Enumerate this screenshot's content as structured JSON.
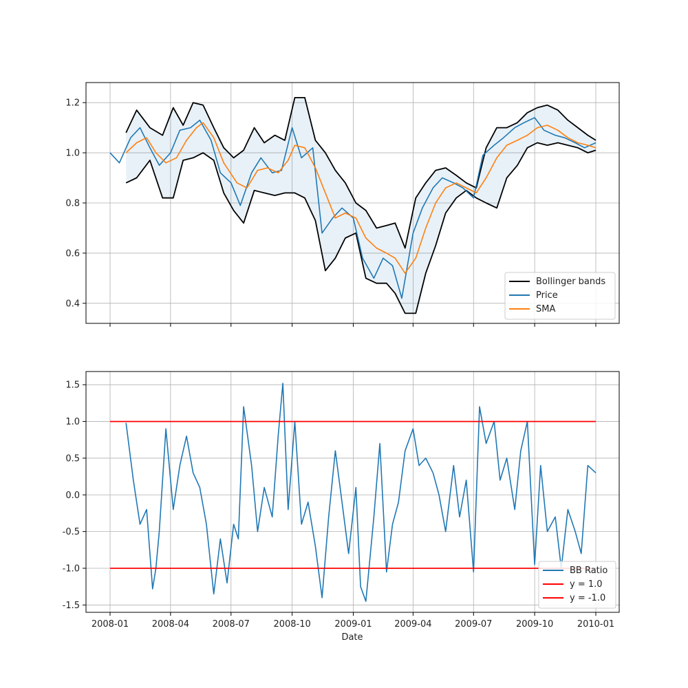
{
  "chart_data": [
    {
      "type": "line",
      "xlim": [
        "2008-01-01",
        "2010-01-01"
      ],
      "ylim": [
        0.32,
        1.28
      ],
      "x_ticks": [
        "2008-01",
        "2008-04",
        "2008-07",
        "2008-10",
        "2009-01",
        "2009-04",
        "2009-07",
        "2009-10",
        "2010-01"
      ],
      "y_ticks": [
        0.4,
        0.6,
        0.8,
        1.0,
        1.2
      ],
      "grid": true,
      "legend_position": "lower-right",
      "colors": {
        "bands": "#000000",
        "price": "#1f77b4",
        "sma": "#ff7f0e",
        "band_fill": "#1f77b4"
      },
      "series": [
        {
          "name": "Price",
          "x": [
            "2008-01-01",
            "2008-01-15",
            "2008-02-01",
            "2008-02-15",
            "2008-03-01",
            "2008-03-15",
            "2008-04-01",
            "2008-04-15",
            "2008-05-01",
            "2008-05-15",
            "2008-06-01",
            "2008-06-15",
            "2008-07-01",
            "2008-07-15",
            "2008-08-01",
            "2008-08-15",
            "2008-09-01",
            "2008-09-15",
            "2008-10-01",
            "2008-10-15",
            "2008-11-01",
            "2008-11-15",
            "2008-12-01",
            "2008-12-15",
            "2009-01-01",
            "2009-01-15",
            "2009-02-01",
            "2009-02-15",
            "2009-03-01",
            "2009-03-15",
            "2009-04-01",
            "2009-04-15",
            "2009-05-01",
            "2009-05-15",
            "2009-06-01",
            "2009-06-15",
            "2009-07-01",
            "2009-07-15",
            "2009-08-01",
            "2009-08-15",
            "2009-09-01",
            "2009-09-15",
            "2009-10-01",
            "2009-10-15",
            "2009-11-01",
            "2009-11-15",
            "2009-12-01",
            "2009-12-15",
            "2010-01-01"
          ],
          "values": [
            1.0,
            0.96,
            1.06,
            1.1,
            1.02,
            0.95,
            1.0,
            1.09,
            1.1,
            1.13,
            1.05,
            0.92,
            0.88,
            0.79,
            0.92,
            0.98,
            0.92,
            0.93,
            1.1,
            0.98,
            1.02,
            0.68,
            0.74,
            0.78,
            0.74,
            0.58,
            0.5,
            0.58,
            0.55,
            0.42,
            0.68,
            0.78,
            0.86,
            0.9,
            0.88,
            0.86,
            0.82,
            0.99,
            1.03,
            1.06,
            1.1,
            1.12,
            1.14,
            1.09,
            1.07,
            1.06,
            1.04,
            1.02,
            1.04
          ]
        },
        {
          "name": "SMA",
          "x": [
            "2008-01-25",
            "2008-02-10",
            "2008-02-25",
            "2008-03-10",
            "2008-03-25",
            "2008-04-10",
            "2008-04-25",
            "2008-05-10",
            "2008-05-20",
            "2008-06-05",
            "2008-06-20",
            "2008-07-10",
            "2008-07-25",
            "2008-08-10",
            "2008-08-25",
            "2008-09-10",
            "2008-09-25",
            "2008-10-05",
            "2008-10-20",
            "2008-11-05",
            "2008-11-20",
            "2008-12-05",
            "2008-12-20",
            "2009-01-05",
            "2009-01-20",
            "2009-02-05",
            "2009-02-20",
            "2009-03-05",
            "2009-03-20",
            "2009-04-05",
            "2009-04-20",
            "2009-05-05",
            "2009-05-20",
            "2009-06-05",
            "2009-06-20",
            "2009-07-05",
            "2009-07-20",
            "2009-08-05",
            "2009-08-20",
            "2009-09-05",
            "2009-09-20",
            "2009-10-05",
            "2009-10-20",
            "2009-11-05",
            "2009-11-20",
            "2009-12-05",
            "2009-12-20",
            "2010-01-01"
          ],
          "values": [
            1.0,
            1.04,
            1.06,
            1.0,
            0.96,
            0.98,
            1.05,
            1.1,
            1.12,
            1.06,
            0.96,
            0.88,
            0.86,
            0.93,
            0.94,
            0.92,
            0.97,
            1.03,
            1.02,
            0.94,
            0.84,
            0.74,
            0.76,
            0.74,
            0.66,
            0.62,
            0.6,
            0.58,
            0.52,
            0.58,
            0.7,
            0.8,
            0.86,
            0.88,
            0.86,
            0.84,
            0.9,
            0.98,
            1.03,
            1.05,
            1.07,
            1.1,
            1.11,
            1.09,
            1.06,
            1.04,
            1.03,
            1.02
          ]
        },
        {
          "name": "Bollinger bands",
          "role": "upper",
          "x": [
            "2008-01-25",
            "2008-02-10",
            "2008-03-01",
            "2008-03-20",
            "2008-04-05",
            "2008-04-20",
            "2008-05-05",
            "2008-05-20",
            "2008-06-05",
            "2008-06-20",
            "2008-07-05",
            "2008-07-20",
            "2008-08-05",
            "2008-08-20",
            "2008-09-05",
            "2008-09-20",
            "2008-10-05",
            "2008-10-20",
            "2008-11-05",
            "2008-11-20",
            "2008-12-05",
            "2008-12-20",
            "2009-01-05",
            "2009-01-20",
            "2009-02-05",
            "2009-02-20",
            "2009-03-05",
            "2009-03-20",
            "2009-04-05",
            "2009-04-20",
            "2009-05-05",
            "2009-05-20",
            "2009-06-05",
            "2009-06-20",
            "2009-07-05",
            "2009-07-20",
            "2009-08-05",
            "2009-08-20",
            "2009-09-05",
            "2009-09-20",
            "2009-10-05",
            "2009-10-20",
            "2009-11-05",
            "2009-11-20",
            "2009-12-05",
            "2009-12-20",
            "2010-01-01"
          ],
          "values": [
            1.08,
            1.17,
            1.1,
            1.07,
            1.18,
            1.11,
            1.2,
            1.19,
            1.1,
            1.02,
            0.98,
            1.01,
            1.1,
            1.04,
            1.07,
            1.05,
            1.22,
            1.22,
            1.05,
            1.0,
            0.93,
            0.88,
            0.8,
            0.77,
            0.7,
            0.71,
            0.72,
            0.62,
            0.82,
            0.88,
            0.93,
            0.94,
            0.91,
            0.88,
            0.86,
            1.02,
            1.1,
            1.1,
            1.12,
            1.16,
            1.18,
            1.19,
            1.17,
            1.13,
            1.1,
            1.07,
            1.05
          ]
        },
        {
          "name": "Bollinger bands",
          "role": "lower",
          "x": [
            "2008-01-25",
            "2008-02-10",
            "2008-03-01",
            "2008-03-20",
            "2008-04-05",
            "2008-04-20",
            "2008-05-05",
            "2008-05-20",
            "2008-06-05",
            "2008-06-20",
            "2008-07-05",
            "2008-07-20",
            "2008-08-05",
            "2008-08-20",
            "2008-09-05",
            "2008-09-20",
            "2008-10-05",
            "2008-10-20",
            "2008-11-05",
            "2008-11-20",
            "2008-12-05",
            "2008-12-20",
            "2009-01-05",
            "2009-01-20",
            "2009-02-05",
            "2009-02-20",
            "2009-03-05",
            "2009-03-20",
            "2009-04-05",
            "2009-04-20",
            "2009-05-05",
            "2009-05-20",
            "2009-06-05",
            "2009-06-20",
            "2009-07-05",
            "2009-07-20",
            "2009-08-05",
            "2009-08-20",
            "2009-09-05",
            "2009-09-20",
            "2009-10-05",
            "2009-10-20",
            "2009-11-05",
            "2009-11-20",
            "2009-12-05",
            "2009-12-20",
            "2010-01-01"
          ],
          "values": [
            0.88,
            0.9,
            0.97,
            0.82,
            0.82,
            0.97,
            0.98,
            1.0,
            0.97,
            0.84,
            0.77,
            0.72,
            0.85,
            0.84,
            0.83,
            0.84,
            0.84,
            0.82,
            0.73,
            0.53,
            0.58,
            0.66,
            0.68,
            0.5,
            0.48,
            0.48,
            0.44,
            0.36,
            0.36,
            0.52,
            0.63,
            0.76,
            0.82,
            0.85,
            0.82,
            0.8,
            0.78,
            0.9,
            0.95,
            1.02,
            1.04,
            1.03,
            1.04,
            1.03,
            1.02,
            1.0,
            1.01
          ]
        }
      ]
    },
    {
      "type": "line",
      "xlabel": "Date",
      "xlim": [
        "2008-01-01",
        "2010-01-01"
      ],
      "ylim": [
        -1.6,
        1.68
      ],
      "x_ticks": [
        "2008-01",
        "2008-04",
        "2008-07",
        "2008-10",
        "2009-01",
        "2009-04",
        "2009-07",
        "2009-10",
        "2010-01"
      ],
      "y_ticks": [
        -1.5,
        -1.0,
        -0.5,
        0.0,
        0.5,
        1.0,
        1.5
      ],
      "grid": true,
      "legend_position": "lower-right",
      "colors": {
        "ratio": "#1f77b4",
        "thresholds": "#ff0000"
      },
      "series": [
        {
          "name": "BB Ratio",
          "x": [
            "2008-01-25",
            "2008-02-05",
            "2008-02-15",
            "2008-02-25",
            "2008-03-05",
            "2008-03-10",
            "2008-03-15",
            "2008-03-25",
            "2008-04-05",
            "2008-04-15",
            "2008-04-25",
            "2008-05-05",
            "2008-05-15",
            "2008-05-25",
            "2008-06-05",
            "2008-06-15",
            "2008-06-25",
            "2008-07-05",
            "2008-07-12",
            "2008-07-20",
            "2008-08-01",
            "2008-08-10",
            "2008-08-20",
            "2008-09-01",
            "2008-09-10",
            "2008-09-17",
            "2008-09-25",
            "2008-10-05",
            "2008-10-15",
            "2008-10-25",
            "2008-11-05",
            "2008-11-15",
            "2008-11-25",
            "2008-12-05",
            "2008-12-15",
            "2008-12-25",
            "2009-01-05",
            "2009-01-12",
            "2009-01-20",
            "2009-02-01",
            "2009-02-10",
            "2009-02-20",
            "2009-03-01",
            "2009-03-10",
            "2009-03-20",
            "2009-04-01",
            "2009-04-10",
            "2009-04-20",
            "2009-05-01",
            "2009-05-10",
            "2009-05-20",
            "2009-06-01",
            "2009-06-10",
            "2009-06-20",
            "2009-07-01",
            "2009-07-10",
            "2009-07-20",
            "2009-08-01",
            "2009-08-10",
            "2009-08-20",
            "2009-09-01",
            "2009-09-10",
            "2009-09-20",
            "2009-10-01",
            "2009-10-10",
            "2009-10-20",
            "2009-11-01",
            "2009-11-10",
            "2009-11-20",
            "2009-12-01",
            "2009-12-10",
            "2009-12-20",
            "2010-01-01"
          ],
          "values": [
            0.98,
            0.2,
            -0.4,
            -0.2,
            -1.28,
            -1.0,
            -0.5,
            0.9,
            -0.2,
            0.4,
            0.8,
            0.3,
            0.1,
            -0.4,
            -1.35,
            -0.6,
            -1.2,
            -0.4,
            -0.6,
            1.2,
            0.4,
            -0.5,
            0.1,
            -0.3,
            0.8,
            1.52,
            -0.2,
            1.0,
            -0.4,
            -0.1,
            -0.7,
            -1.4,
            -0.3,
            0.6,
            -0.1,
            -0.8,
            0.1,
            -1.25,
            -1.45,
            -0.3,
            0.7,
            -1.05,
            -0.4,
            -0.1,
            0.6,
            0.9,
            0.4,
            0.5,
            0.3,
            0.0,
            -0.5,
            0.4,
            -0.3,
            0.2,
            -1.05,
            1.2,
            0.7,
            1.0,
            0.2,
            0.5,
            -0.2,
            0.6,
            1.0,
            -0.95,
            0.4,
            -0.5,
            -0.3,
            -1.0,
            -0.2,
            -0.5,
            -0.8,
            0.4,
            0.3
          ]
        },
        {
          "name": "y = 1.0",
          "x": [
            "2008-01-01",
            "2010-01-01"
          ],
          "values": [
            1.0,
            1.0
          ]
        },
        {
          "name": "y = -1.0",
          "x": [
            "2008-01-01",
            "2010-01-01"
          ],
          "values": [
            -1.0,
            -1.0
          ]
        }
      ]
    }
  ]
}
